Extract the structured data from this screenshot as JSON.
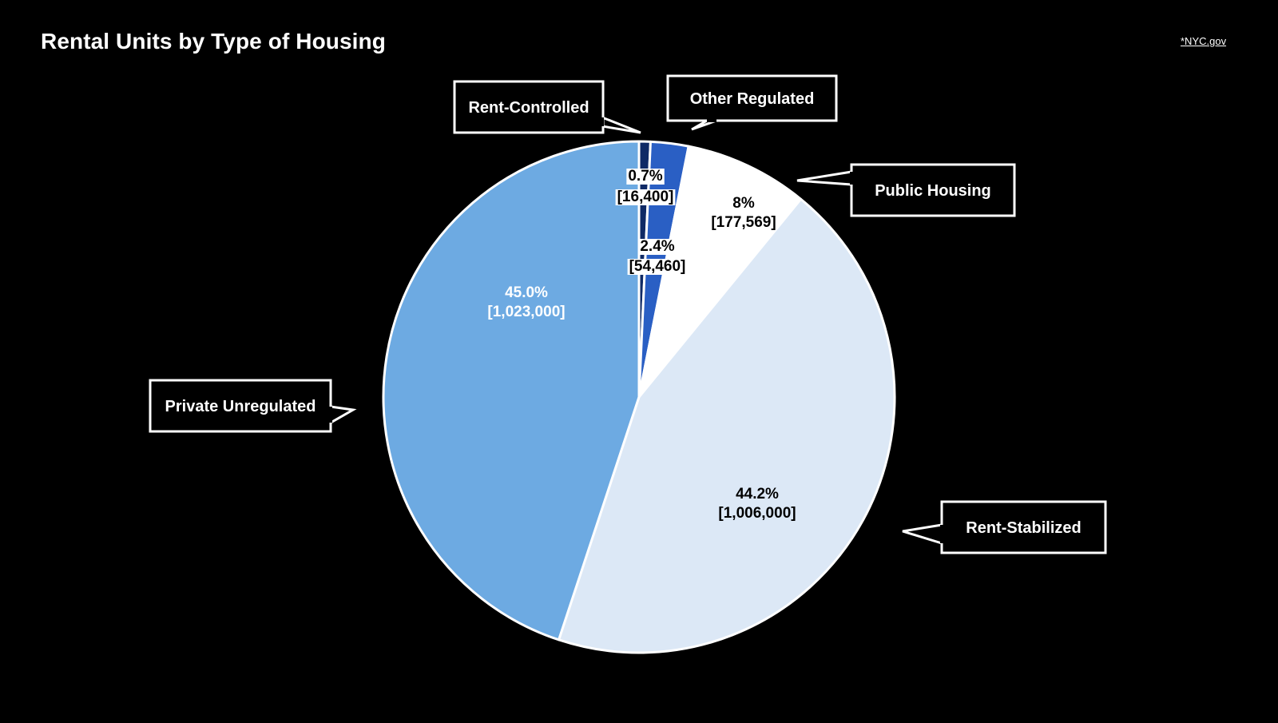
{
  "page": {
    "title": "Rental Units by Type of Housing",
    "source_label": "*NYC.gov"
  },
  "colors": {
    "background": "#000000",
    "outline": "#ffffff",
    "callout_fill": "#000000",
    "callout_text": "#ffffff"
  },
  "chart_data": {
    "type": "pie",
    "title": "Rental Units by Type of Housing",
    "start_angle_deg": 0,
    "direction": "clockwise",
    "slices": [
      {
        "name": "Rent-Controlled",
        "percent": 0.7,
        "value": 16400,
        "percent_label": "0.7%",
        "value_label": "[16,400]",
        "color": "#0f2a66",
        "label_text_color": "#000000",
        "label_bg": "#ffffff"
      },
      {
        "name": "Other Regulated",
        "percent": 2.4,
        "value": 54460,
        "percent_label": "2.4%",
        "value_label": "[54,460]",
        "color": "#2a5fc4",
        "label_text_color": "#000000",
        "label_bg": "#ffffff"
      },
      {
        "name": "Public Housing",
        "percent": 8,
        "value": 177569,
        "percent_label": "8%",
        "value_label": "[177,569]",
        "color": "#ffffff",
        "label_text_color": "#000000",
        "label_bg": ""
      },
      {
        "name": "Rent-Stabilized",
        "percent": 44.2,
        "value": 1006000,
        "percent_label": "44.2%",
        "value_label": "[1,006,000]",
        "color": "#dce8f6",
        "label_text_color": "#000000",
        "label_bg": ""
      },
      {
        "name": "Private Unregulated",
        "percent": 45.0,
        "value": 1023000,
        "percent_label": "45.0%",
        "value_label": "[1,023,000]",
        "color": "#6daae2",
        "label_text_color": "#ffffff",
        "label_bg": ""
      }
    ]
  }
}
